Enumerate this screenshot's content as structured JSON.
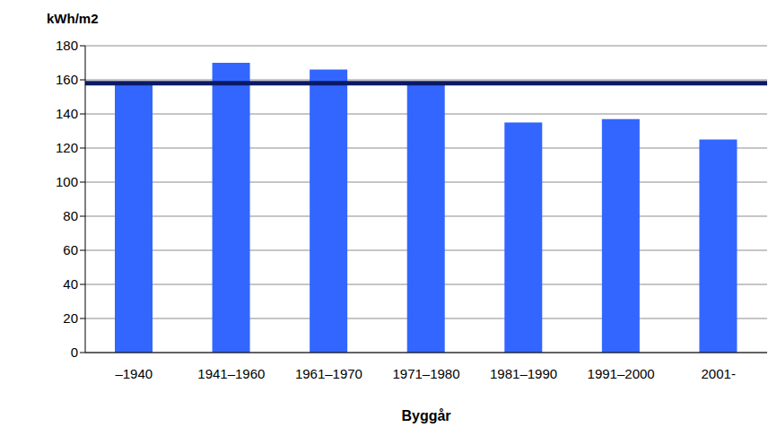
{
  "chart_data": {
    "type": "bar",
    "y_label": "kWh/m2",
    "x_label": "Byggår",
    "categories": [
      "–1940",
      "1941–1960",
      "1961–1970",
      "1971–1980",
      "1981–1990",
      "1991–2000",
      "2001-"
    ],
    "values": [
      158,
      170,
      166,
      157,
      135,
      137,
      125
    ],
    "color": "#3366ff",
    "ylim": [
      0,
      180
    ],
    "yticks": [
      0,
      20,
      40,
      60,
      80,
      100,
      120,
      140,
      160,
      180
    ],
    "grid": true,
    "reference_line": {
      "value": 158,
      "color": "#0b1a66"
    }
  }
}
